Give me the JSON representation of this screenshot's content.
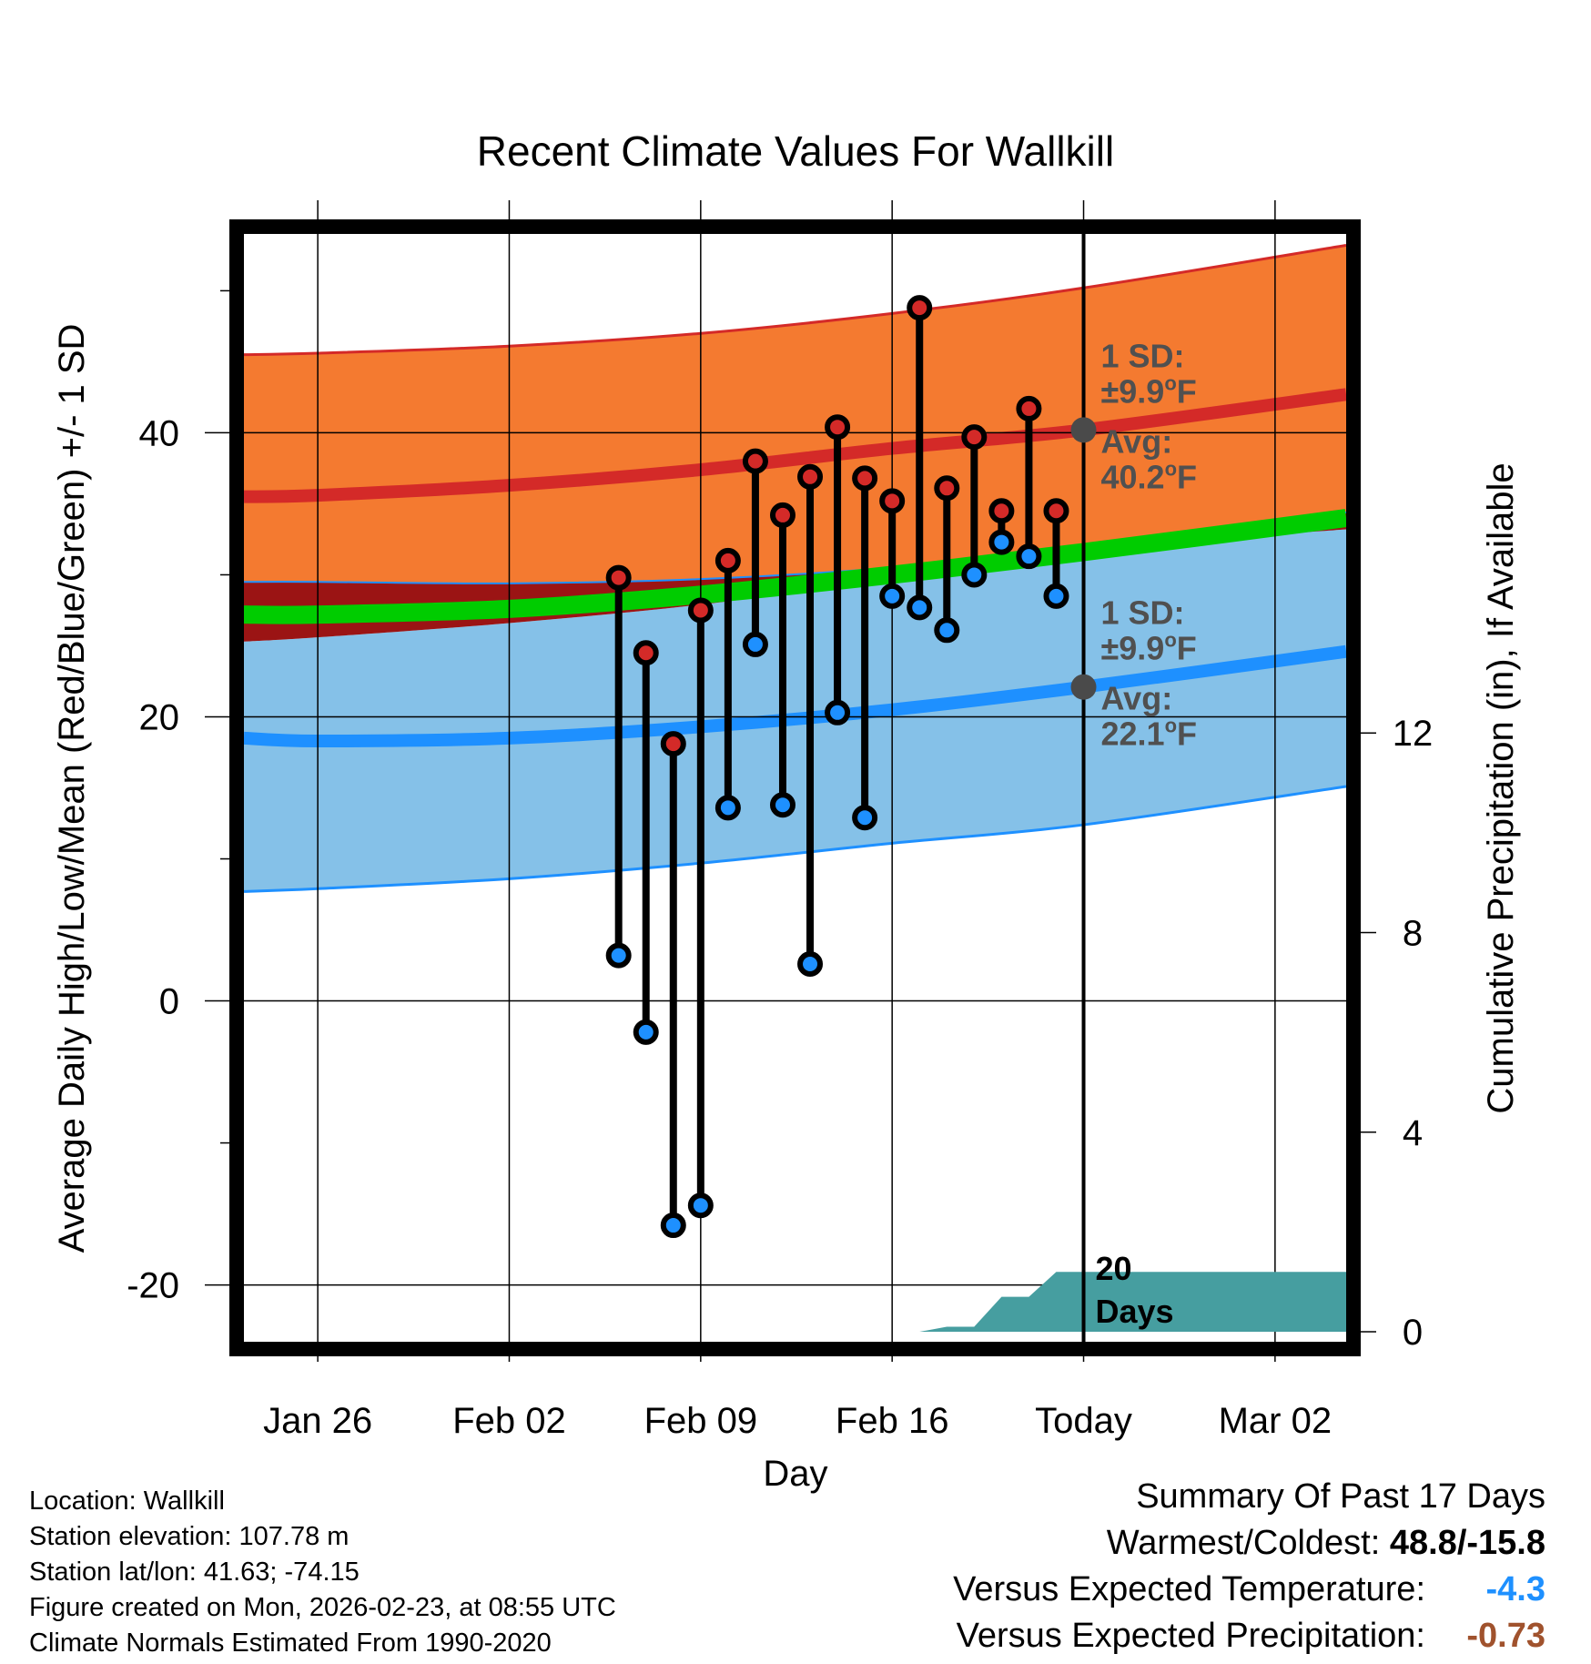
{
  "chart_data": {
    "type": "line",
    "title": "Recent Climate Values For Wallkill",
    "xlabel": "Day",
    "ylabel": "Average Daily High/Low/Mean (Red/Blue/Green) +/- 1 SD",
    "y2label": "Cumulative Precipitation (in), If Available",
    "ylim": [
      -24,
      54
    ],
    "y2lim": [
      -0.2,
      22
    ],
    "x_tick_labels": [
      {
        "day": 0,
        "label": "Jan 26"
      },
      {
        "day": 7,
        "label": "Feb 02"
      },
      {
        "day": 14,
        "label": "Feb 09"
      },
      {
        "day": 21,
        "label": "Feb 16"
      },
      {
        "day": 28,
        "label": "Today"
      },
      {
        "day": 35,
        "label": "Mar 02"
      }
    ],
    "x_range": [
      -2.7,
      37.6
    ],
    "y_ticks": [
      -20,
      0,
      20,
      40
    ],
    "y2_ticks": [
      0,
      4,
      8,
      12
    ],
    "normals": {
      "days": [
        -2.7,
        0,
        7,
        14,
        21,
        28,
        37.6
      ],
      "high_avg": [
        35.5,
        35.6,
        36.3,
        37.4,
        38.9,
        40.2,
        42.7
      ],
      "high_upper": [
        45.5,
        45.6,
        46.1,
        47.0,
        48.4,
        50.2,
        53.2
      ],
      "high_lower": [
        29.5,
        29.5,
        29.4,
        29.7,
        30.5,
        31.8,
        34.4
      ],
      "low_avg": [
        18.5,
        18.3,
        18.5,
        19.3,
        20.5,
        22.1,
        24.6
      ],
      "low_upper": [
        25.3,
        25.6,
        26.6,
        27.9,
        29.7,
        31.9,
        33.2
      ],
      "low_lower": [
        7.7,
        7.9,
        8.6,
        9.7,
        11.1,
        12.4,
        15.1
      ],
      "mean_avg": [
        27.2,
        27.2,
        27.6,
        28.6,
        30.0,
        31.6,
        34.0
      ]
    },
    "series": [
      {
        "name": "Daily High",
        "days": [
          11,
          12,
          13,
          14,
          15,
          16,
          17,
          18,
          19,
          20,
          21,
          22,
          23,
          24,
          25,
          26,
          27
        ],
        "values": [
          29.8,
          24.5,
          18.1,
          27.5,
          31.0,
          38.0,
          34.2,
          36.9,
          40.4,
          36.8,
          35.2,
          48.8,
          36.1,
          39.7,
          34.5,
          41.7,
          34.5
        ]
      },
      {
        "name": "Daily Low",
        "days": [
          11,
          12,
          13,
          14,
          15,
          16,
          17,
          18,
          19,
          20,
          21,
          22,
          23,
          24,
          25,
          26,
          27
        ],
        "values": [
          3.2,
          -2.2,
          -15.8,
          -14.4,
          13.6,
          25.1,
          13.8,
          2.6,
          20.3,
          12.9,
          28.5,
          27.7,
          26.1,
          30.0,
          32.3,
          31.3,
          28.5
        ]
      }
    ],
    "precip_cumulative": {
      "days": [
        19,
        20,
        21,
        22,
        23,
        24,
        25,
        26,
        27,
        28,
        37.6
      ],
      "values": [
        0.0,
        0.0,
        0.0,
        0.0,
        0.1,
        0.1,
        0.7,
        0.7,
        1.2,
        1.2,
        1.2
      ]
    },
    "annotations": {
      "high_sd_label_1": "1 SD:",
      "high_sd_label_2": "±9.9",
      "high_avg_label_1": "Avg:",
      "high_avg_label_2": "40.2",
      "low_sd_label_1": "1 SD:",
      "low_sd_label_2": "±9.9",
      "low_avg_label_1": "Avg:",
      "low_avg_label_2": "22.1",
      "degree_sup": "o",
      "unit_f": "F",
      "high_avg_marker": 40.2,
      "low_avg_marker": 22.1,
      "precip_label_1": "20",
      "precip_label_2": "Days"
    },
    "colors": {
      "high_band": "#f47a30",
      "high_line": "#d42a28",
      "low_band": "#85c1e8",
      "low_line": "#1e90ff",
      "mean_line": "#00cc00",
      "overlap": "#9b1414",
      "precip": "#469ea0",
      "high_dot": "#d42a28",
      "low_dot": "#1e90ff",
      "annotation": "#505050",
      "anomaly_temp": "#1e90ff",
      "anomaly_precip": "#a0522d"
    }
  },
  "meta": {
    "location": "Location: Wallkill",
    "elevation": "Station elevation: 107.78 m",
    "latlon": "Station lat/lon: 41.63; -74.15",
    "created": "Figure created on Mon, 2026-02-23, at 08:55 UTC",
    "normals": "Climate Normals Estimated From 1990-2020"
  },
  "summary": {
    "title": "Summary Of Past 17 Days",
    "warm_cold_label": "Warmest/Coldest: ",
    "warm_cold_value": "48.8/-15.8",
    "temp_label": "Versus Expected Temperature:",
    "temp_value": "-4.3",
    "precip_label": "Versus Expected Precipitation:",
    "precip_value": "-0.73"
  }
}
